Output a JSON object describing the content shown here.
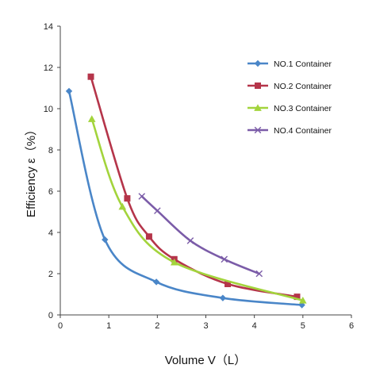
{
  "chart_data": {
    "type": "line",
    "xlabel": "Volume V（L）",
    "ylabel": "Efficiency ε（%）",
    "xlim": [
      0,
      6
    ],
    "ylim": [
      0,
      14
    ],
    "xticks": [
      "0",
      "1",
      "2",
      "3",
      "4",
      "5",
      "6"
    ],
    "yticks": [
      "0",
      "2",
      "4",
      "6",
      "8",
      "10",
      "12",
      "14"
    ],
    "grid": false,
    "legend_position": "top-right",
    "series": [
      {
        "name": "NO.1 Container",
        "color": "#4a86c8",
        "marker": "diamond",
        "x": [
          0.18,
          0.92,
          1.98,
          3.35,
          4.98
        ],
        "y": [
          10.85,
          3.65,
          1.6,
          0.82,
          0.48
        ]
      },
      {
        "name": "NO.2 Container",
        "color": "#b5354a",
        "marker": "square",
        "x": [
          0.63,
          1.38,
          1.83,
          2.35,
          3.45,
          4.88
        ],
        "y": [
          11.55,
          5.65,
          3.8,
          2.7,
          1.5,
          0.88
        ]
      },
      {
        "name": "NO.3 Container",
        "color": "#a3d43c",
        "marker": "triangle",
        "x": [
          0.65,
          1.28,
          2.35,
          5.0
        ],
        "y": [
          9.5,
          5.25,
          2.55,
          0.7
        ]
      },
      {
        "name": "NO.4 Container",
        "color": "#7b5ca8",
        "marker": "x",
        "x": [
          1.68,
          2.0,
          2.68,
          3.38,
          4.1
        ],
        "y": [
          5.75,
          5.05,
          3.6,
          2.7,
          2.0
        ]
      }
    ]
  }
}
